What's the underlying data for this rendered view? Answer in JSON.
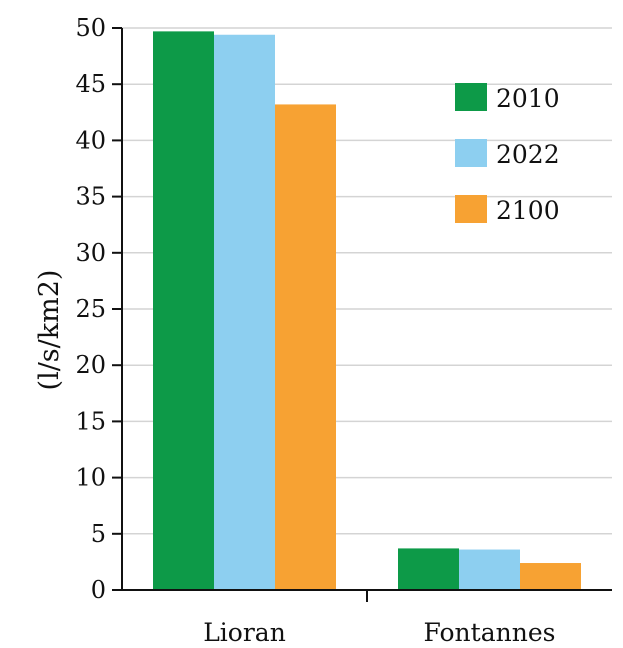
{
  "chart_data": {
    "type": "bar",
    "title": "",
    "xlabel": "",
    "ylabel": "(l/s/km2)",
    "categories": [
      "Lioran",
      "Fontannes"
    ],
    "series": [
      {
        "name": "2010",
        "values": [
          49.7,
          3.7
        ],
        "color": "#0d9a48"
      },
      {
        "name": "2022",
        "values": [
          49.4,
          3.6
        ],
        "color": "#8dcff0"
      },
      {
        "name": "2100",
        "values": [
          43.2,
          2.4
        ],
        "color": "#f7a233"
      }
    ],
    "ylim": [
      0,
      50
    ],
    "yticks": [
      0,
      5,
      10,
      15,
      20,
      25,
      30,
      35,
      40,
      45,
      50
    ],
    "grid": true,
    "legend_position": "top-right"
  }
}
